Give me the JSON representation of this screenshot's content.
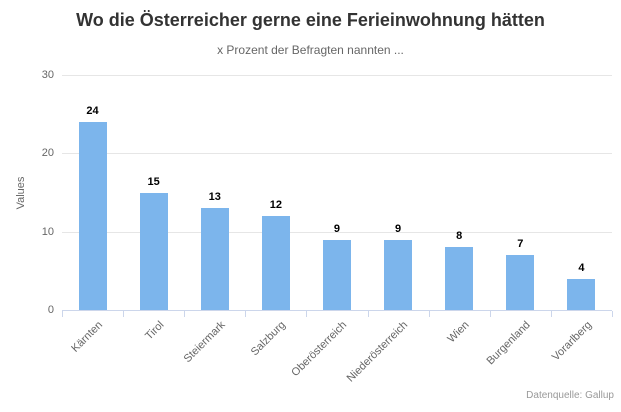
{
  "chart_data": {
    "type": "bar",
    "title": "Wo die Österreicher gerne eine Ferieinwohnung hätten",
    "subtitle": "x Prozent der Befragten nannten ...",
    "categories": [
      "Kärnten",
      "Tirol",
      "Steiermark",
      "Salzburg",
      "Oberösterreich",
      "Niederösterreich",
      "Wien",
      "Burgenland",
      "Vorarlberg"
    ],
    "values": [
      24,
      15,
      13,
      12,
      9,
      9,
      8,
      7,
      4
    ],
    "xlabel": "",
    "ylabel": "Values",
    "ylim": [
      0,
      30
    ],
    "yticks": [
      0,
      10,
      20,
      30
    ],
    "grid": true,
    "legend": "none",
    "data_labels": true,
    "credits": "Datenquelle: Gallup",
    "colors": {
      "bar": "#7cb5ec",
      "grid": "#e6e6e6",
      "axis_line": "#ccd6eb",
      "tick_label": "#666666",
      "title": "#333333",
      "subtitle": "#666666",
      "data_label": "#000000",
      "credits": "#999999"
    }
  }
}
